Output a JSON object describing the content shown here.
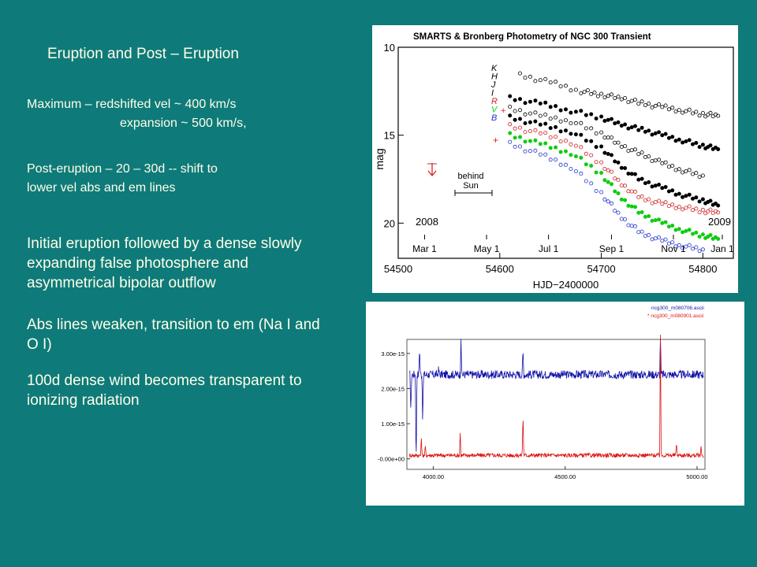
{
  "slide": {
    "title": "Eruption and Post – Eruption",
    "small_lines": [
      "Maximum – redshifted vel ~ 400 km/s",
      "expansion ~ 500 km/s,",
      "Post-eruption – 20 – 30d -- shift to",
      "lower vel abs and em lines"
    ],
    "bullets": [
      "Initial eruption followed by a dense slowly expanding false photosphere and asymmetrical bipolar outflow",
      "Abs lines weaken, transition to em (Na I and O I)",
      "100d dense wind becomes transparent to ionizing radiation"
    ]
  },
  "chart_data": [
    {
      "type": "scatter",
      "title": "SMARTS & Bronberg Photometry of NGC 300 Transient",
      "xlabel": "HJD−2400000",
      "ylabel": "mag",
      "xlim": [
        54500,
        54830
      ],
      "ylim": [
        22,
        10
      ],
      "x_ticks": [
        "54500",
        "54600",
        "54700",
        "54800"
      ],
      "y_ticks": [
        "10",
        "15",
        "20"
      ],
      "top_axis_ticks": [
        "Mar 1",
        "May 1",
        "Jul 1",
        "Sep 1",
        "Nov 1",
        "Jan 1"
      ],
      "year_labels": [
        "2008",
        "2009"
      ],
      "annotations": [
        "behind",
        "Sun"
      ],
      "legend": [
        "K",
        "H",
        "J",
        "I",
        "R",
        "V",
        "B"
      ],
      "series": [
        {
          "name": "K",
          "color": "#000000",
          "style": "open",
          "x": [
            54620,
            54650,
            54680,
            54700,
            54720,
            54740,
            54760,
            54780,
            54800,
            54815
          ],
          "y": [
            11.6,
            12.0,
            12.5,
            12.7,
            12.9,
            13.2,
            13.4,
            13.6,
            13.8,
            13.9
          ]
        },
        {
          "name": "H",
          "color": "#000000",
          "style": "filled",
          "x": [
            54610,
            54640,
            54670,
            54700,
            54720,
            54740,
            54760,
            54780,
            54800,
            54815
          ],
          "y": [
            12.9,
            13.2,
            13.6,
            14.0,
            14.4,
            14.7,
            15.0,
            15.3,
            15.6,
            15.8
          ]
        },
        {
          "name": "J",
          "color": "#000000",
          "style": "open",
          "x": [
            54610,
            54640,
            54670,
            54700,
            54720,
            54740,
            54760,
            54780,
            54800
          ],
          "y": [
            13.5,
            13.9,
            14.2,
            14.9,
            15.6,
            16.1,
            16.6,
            17.0,
            17.3
          ]
        },
        {
          "name": "I",
          "color": "#000000",
          "style": "filled",
          "x": [
            54610,
            54640,
            54670,
            54700,
            54720,
            54740,
            54760,
            54780,
            54800,
            54815
          ],
          "y": [
            14.0,
            14.4,
            14.8,
            15.7,
            16.8,
            17.6,
            18.0,
            18.4,
            18.7,
            19.0
          ]
        },
        {
          "name": "R",
          "color": "#cc2222",
          "style": "open",
          "x": [
            54610,
            54640,
            54670,
            54700,
            54720,
            54740,
            54760,
            54780,
            54800,
            54815
          ],
          "y": [
            14.5,
            14.9,
            15.4,
            16.6,
            17.8,
            18.6,
            18.9,
            19.1,
            19.3,
            19.4
          ]
        },
        {
          "name": "V",
          "color": "#11cc11",
          "style": "filled",
          "x": [
            54610,
            54640,
            54670,
            54700,
            54720,
            54740,
            54760,
            54780,
            54800,
            54815
          ],
          "y": [
            15.0,
            15.5,
            16.0,
            17.2,
            18.6,
            19.5,
            20.0,
            20.4,
            20.7,
            20.9
          ]
        },
        {
          "name": "B",
          "color": "#2233cc",
          "style": "open",
          "x": [
            54610,
            54640,
            54670,
            54700,
            54720,
            54740,
            54760,
            54780,
            54800
          ],
          "y": [
            15.5,
            16.1,
            16.8,
            18.3,
            19.7,
            20.6,
            21.0,
            21.3,
            21.5
          ]
        }
      ]
    },
    {
      "type": "line",
      "title": "",
      "xlim": [
        3900,
        5030
      ],
      "ylim": [
        -3e-16,
        3.4e-15
      ],
      "x_ticks": [
        "4000.00",
        "4500.00",
        "5000.00"
      ],
      "y_ticks": [
        "-0.00e+00",
        "1.00e-15",
        "2.00e-15",
        "3.00e-15"
      ],
      "legend": [
        "ncg300_m080706.ascii",
        "* ncg300_m080901.ascii"
      ],
      "series": [
        {
          "name": "ncg300_m080706.ascii",
          "color": "#1111aa",
          "baseline": 2.4e-15,
          "noise": 1.2e-16,
          "x": [
            3915,
            3935,
            3948,
            3960,
            4020,
            4105,
            4340,
            4861
          ],
          "y": [
            1.3e-15,
            -3e-16,
            3.2e-15,
            1e-15,
            2.55e-15,
            3.5e-15,
            3.1e-15,
            3.5e-15
          ]
        },
        {
          "name": "* ncg300_m080901.ascii",
          "color": "#dd1111",
          "baseline": 1e-16,
          "noise": 6e-17,
          "x": [
            3955,
            3970,
            4102,
            4340,
            4861,
            4922,
            5015
          ],
          "y": [
            6e-16,
            3.5e-16,
            7.5e-16,
            1.3e-15,
            3.6e-15,
            5e-16,
            3.5e-16
          ]
        }
      ]
    }
  ]
}
